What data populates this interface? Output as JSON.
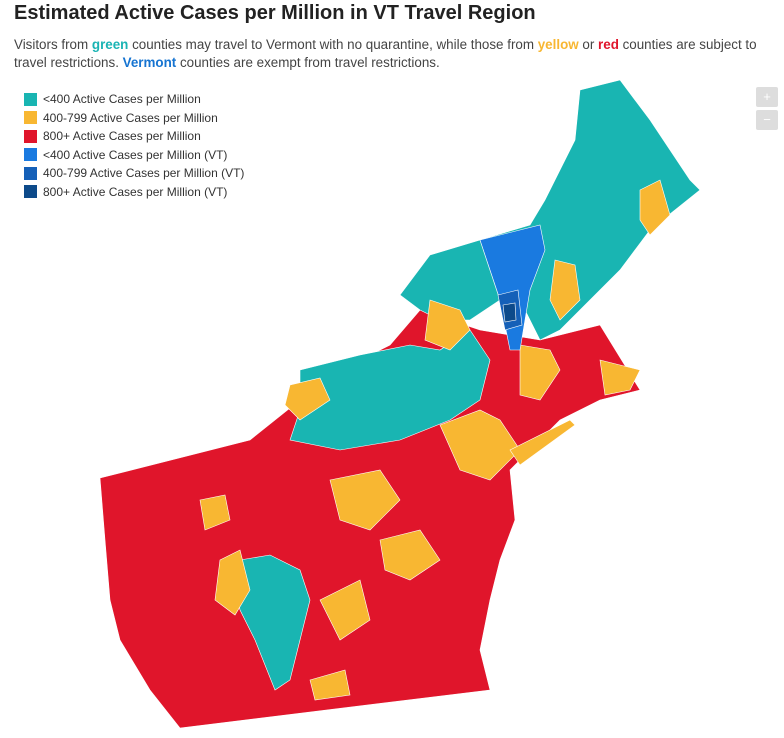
{
  "title": "Estimated Active Cases per Million in VT Travel Region",
  "subtitle": [
    {
      "text": "Visitors from "
    },
    {
      "text": "green",
      "color": "#1ab4b4"
    },
    {
      "text": " counties may travel to Vermont with no quarantine, while those from "
    },
    {
      "text": "yellow",
      "color": "#f8b732"
    },
    {
      "text": " or "
    },
    {
      "text": "red",
      "color": "#e0152b"
    },
    {
      "text": " counties are subject to travel restrictions. "
    },
    {
      "text": "Vermont",
      "color": "#1674d1"
    },
    {
      "text": " counties are exempt from travel restrictions."
    }
  ],
  "legend": [
    {
      "label": "<400 Active Cases per Million",
      "color": "#19b5b2"
    },
    {
      "label": "400-799 Active Cases per Million",
      "color": "#f8b732"
    },
    {
      "label": "800+ Active Cases per Million",
      "color": "#e0152b"
    },
    {
      "label": "<400 Active Cases per Million (VT)",
      "color": "#1a7ae0"
    },
    {
      "label": "400-799 Active Cases per Million (VT)",
      "color": "#1560b8"
    },
    {
      "label": "800+ Active Cases per Million (VT)",
      "color": "#0d4a8a"
    }
  ],
  "zoom": [
    "+",
    "−"
  ]
}
